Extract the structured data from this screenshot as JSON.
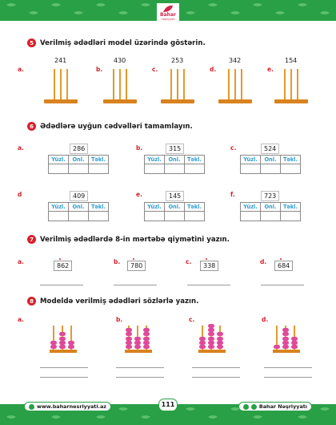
{
  "header": {
    "logo_text": "Bahar",
    "logo_sub": "nəşriyyatı"
  },
  "s5": {
    "badge": "5",
    "title": "Verilmiş ədədləri model üzərində göstərin.",
    "items": [
      {
        "letter": "a.",
        "number": "241"
      },
      {
        "letter": "b.",
        "number": "430"
      },
      {
        "letter": "c.",
        "number": "253"
      },
      {
        "letter": "d.",
        "number": "342"
      },
      {
        "letter": "e.",
        "number": "154"
      }
    ]
  },
  "s6": {
    "badge": "6",
    "title": "Ədədlərə uyğun cədvəlləri tamamlayın.",
    "headers": [
      "Yüzl.",
      "Onl.",
      "Təkl."
    ],
    "items": [
      {
        "letter": "a.",
        "number": "286"
      },
      {
        "letter": "b.",
        "number": "315"
      },
      {
        "letter": "c.",
        "number": "524"
      },
      {
        "letter": "d",
        "number": "409"
      },
      {
        "letter": "e.",
        "number": "145"
      },
      {
        "letter": "f.",
        "number": "723"
      }
    ]
  },
  "s7": {
    "badge": "7",
    "title": "Verilmiş ədədlərdə 8-in mərtəbə qiymətini yazın.",
    "items": [
      {
        "letter": "a.",
        "number": "862"
      },
      {
        "letter": "b.",
        "number": "780"
      },
      {
        "letter": "c.",
        "number": "338"
      },
      {
        "letter": "d.",
        "number": "684"
      }
    ]
  },
  "s8": {
    "badge": "8",
    "title": "Modeldə verilmiş ədədləri sözlərlə yazın.",
    "items": [
      {
        "letter": "a.",
        "hundreds": 2,
        "tens": 4,
        "ones": 2
      },
      {
        "letter": "b.",
        "hundreds": 5,
        "tens": 3,
        "ones": 5
      },
      {
        "letter": "c.",
        "hundreds": 3,
        "tens": 6,
        "ones": 4
      },
      {
        "letter": "d.",
        "hundreds": 1,
        "tens": 5,
        "ones": 3
      }
    ]
  },
  "footer": {
    "website": "www.baharnesriyyati.az",
    "page": "111",
    "brand": "Bahar Nəşriyyatı"
  }
}
